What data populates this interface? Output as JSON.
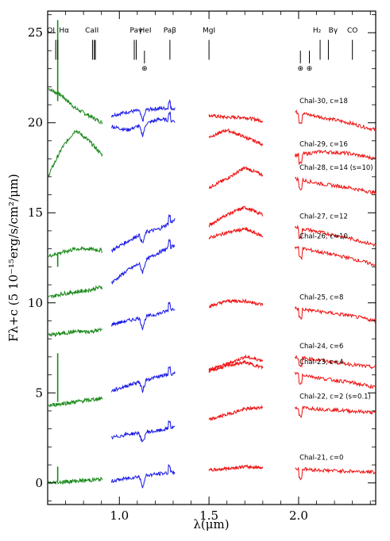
{
  "chart_data": {
    "type": "line",
    "xlabel": "λ(μm)",
    "ylabel": "Fλ+c (5 10⁻¹⁵erg/s/cm²/μm)",
    "xlim": [
      0.6,
      2.43
    ],
    "ylim": [
      -1.2,
      26.2
    ],
    "x_ticks": [
      {
        "value": 1.0,
        "label": "1.0"
      },
      {
        "value": 1.5,
        "label": "1.5"
      },
      {
        "value": 2.0,
        "label": "2.0"
      }
    ],
    "y_ticks": [
      {
        "value": 0,
        "label": "0"
      },
      {
        "value": 5,
        "label": "5"
      },
      {
        "value": 10,
        "label": "10"
      },
      {
        "value": 15,
        "label": "15"
      },
      {
        "value": 20,
        "label": "20"
      },
      {
        "value": 25,
        "label": "25"
      }
    ],
    "series_colors": {
      "optical": "#1a8a1a",
      "j_band": "#1a1ae6",
      "hk_band": "#ee1111"
    },
    "line_markers": [
      {
        "label": "OI",
        "x": 0.645
      },
      {
        "label": "Hα",
        "x": 0.6563
      },
      {
        "label": "CaII",
        "x": 0.86
      },
      {
        "label": "Paγ",
        "x": 1.094
      },
      {
        "label": "HeI",
        "x": 1.083
      },
      {
        "label": "Paβ",
        "x": 1.282
      },
      {
        "label": "MgI",
        "x": 1.5
      },
      {
        "label": "H₂",
        "x": 2.12
      },
      {
        "label": "Bγ",
        "x": 2.166
      },
      {
        "label": "CO",
        "x": 2.3
      }
    ],
    "telluric_markers": [
      {
        "symbol": "⊕",
        "x": 1.14
      },
      {
        "symbol": "⊕",
        "x": 2.01
      },
      {
        "symbol": "⊕",
        "x": 2.06
      }
    ],
    "curves": [
      {
        "label": "Chal-30, c=18",
        "opt": [
          21.9,
          21.5,
          20.8,
          20.4,
          20.0
        ],
        "j": [
          20.4,
          20.6,
          20.7,
          20.8,
          20.8
        ],
        "h": [
          20.4,
          20.3,
          20.3,
          20.1
        ],
        "k": [
          20.6,
          20.3,
          20.0,
          19.6
        ]
      },
      {
        "label": "Chal-29, c=16",
        "opt": [
          17.1,
          18.6,
          19.6,
          19.0,
          18.2
        ],
        "j": [
          19.8,
          19.6,
          19.9,
          20.2,
          20.1
        ],
        "h": [
          19.2,
          19.6,
          19.2,
          18.8
        ],
        "k": [
          18.2,
          18.4,
          18.3,
          18.0
        ]
      },
      {
        "label": "Chal-28, c=14 (s=10)",
        "opt": null,
        "j": null,
        "h": [
          16.4,
          16.9,
          17.5,
          17.1
        ],
        "k": [
          16.9,
          16.6,
          16.4,
          16.1
        ]
      },
      {
        "label": "Chal-27, c=12",
        "opt": [
          12.6,
          12.8,
          13.0,
          13.0,
          12.9
        ],
        "j": [
          12.9,
          13.4,
          13.9,
          14.1,
          14.6
        ],
        "h": [
          14.3,
          14.9,
          15.3,
          14.9
        ],
        "k": [
          14.2,
          13.9,
          13.6,
          13.2
        ]
      },
      {
        "label": "Chal-26, c=10",
        "opt": [
          10.3,
          10.5,
          10.6,
          10.7,
          10.9
        ],
        "j": [
          11.1,
          11.8,
          12.3,
          12.8,
          13.2
        ],
        "h": [
          13.6,
          13.9,
          14.1,
          13.7
        ],
        "k": [
          13.1,
          12.8,
          12.5,
          12.1
        ]
      },
      {
        "label": "Chal-25, c=8",
        "opt": [
          8.2,
          8.3,
          8.4,
          8.4,
          8.5
        ],
        "j": [
          8.8,
          9.0,
          9.2,
          9.4,
          9.7
        ],
        "h": [
          9.8,
          10.1,
          10.1,
          9.9
        ],
        "k": [
          9.7,
          9.5,
          9.3,
          9.0
        ]
      },
      {
        "label": "Chal-24, c=6",
        "opt": null,
        "j": null,
        "h": [
          6.3,
          6.6,
          7.0,
          6.8
        ],
        "k": [
          7.0,
          6.8,
          6.6,
          6.4
        ]
      },
      {
        "label": "Chal-23, c=4",
        "opt": [
          4.3,
          4.4,
          4.5,
          4.6,
          4.7
        ],
        "j": [
          5.1,
          5.4,
          5.7,
          5.9,
          6.1
        ],
        "h": [
          6.2,
          6.5,
          6.7,
          6.4
        ],
        "k": [
          6.1,
          5.8,
          5.6,
          5.3
        ]
      },
      {
        "label": "Chal-22, c=2 (s=0.1)",
        "opt": null,
        "j": [
          2.5,
          2.7,
          2.8,
          2.9,
          3.1
        ],
        "h": [
          3.5,
          3.8,
          4.1,
          4.2
        ],
        "k": [
          4.2,
          4.1,
          4.0,
          3.9
        ]
      },
      {
        "label": "Chal-21, c=0",
        "opt": [
          0.0,
          0.05,
          0.1,
          0.15,
          0.2
        ],
        "j": [
          0.1,
          0.25,
          0.4,
          0.5,
          0.6
        ],
        "h": [
          0.7,
          0.8,
          0.9,
          0.85
        ],
        "k": [
          0.8,
          0.7,
          0.65,
          0.6
        ]
      }
    ],
    "emission_lines": [
      {
        "x": 0.656,
        "top": 25.7,
        "base": 21.2
      },
      {
        "x": 0.656,
        "top": 12.8,
        "base": 12.0
      },
      {
        "x": 0.656,
        "top": 7.2,
        "base": 4.5
      },
      {
        "x": 0.656,
        "top": 0.9,
        "base": 0.1
      }
    ]
  }
}
